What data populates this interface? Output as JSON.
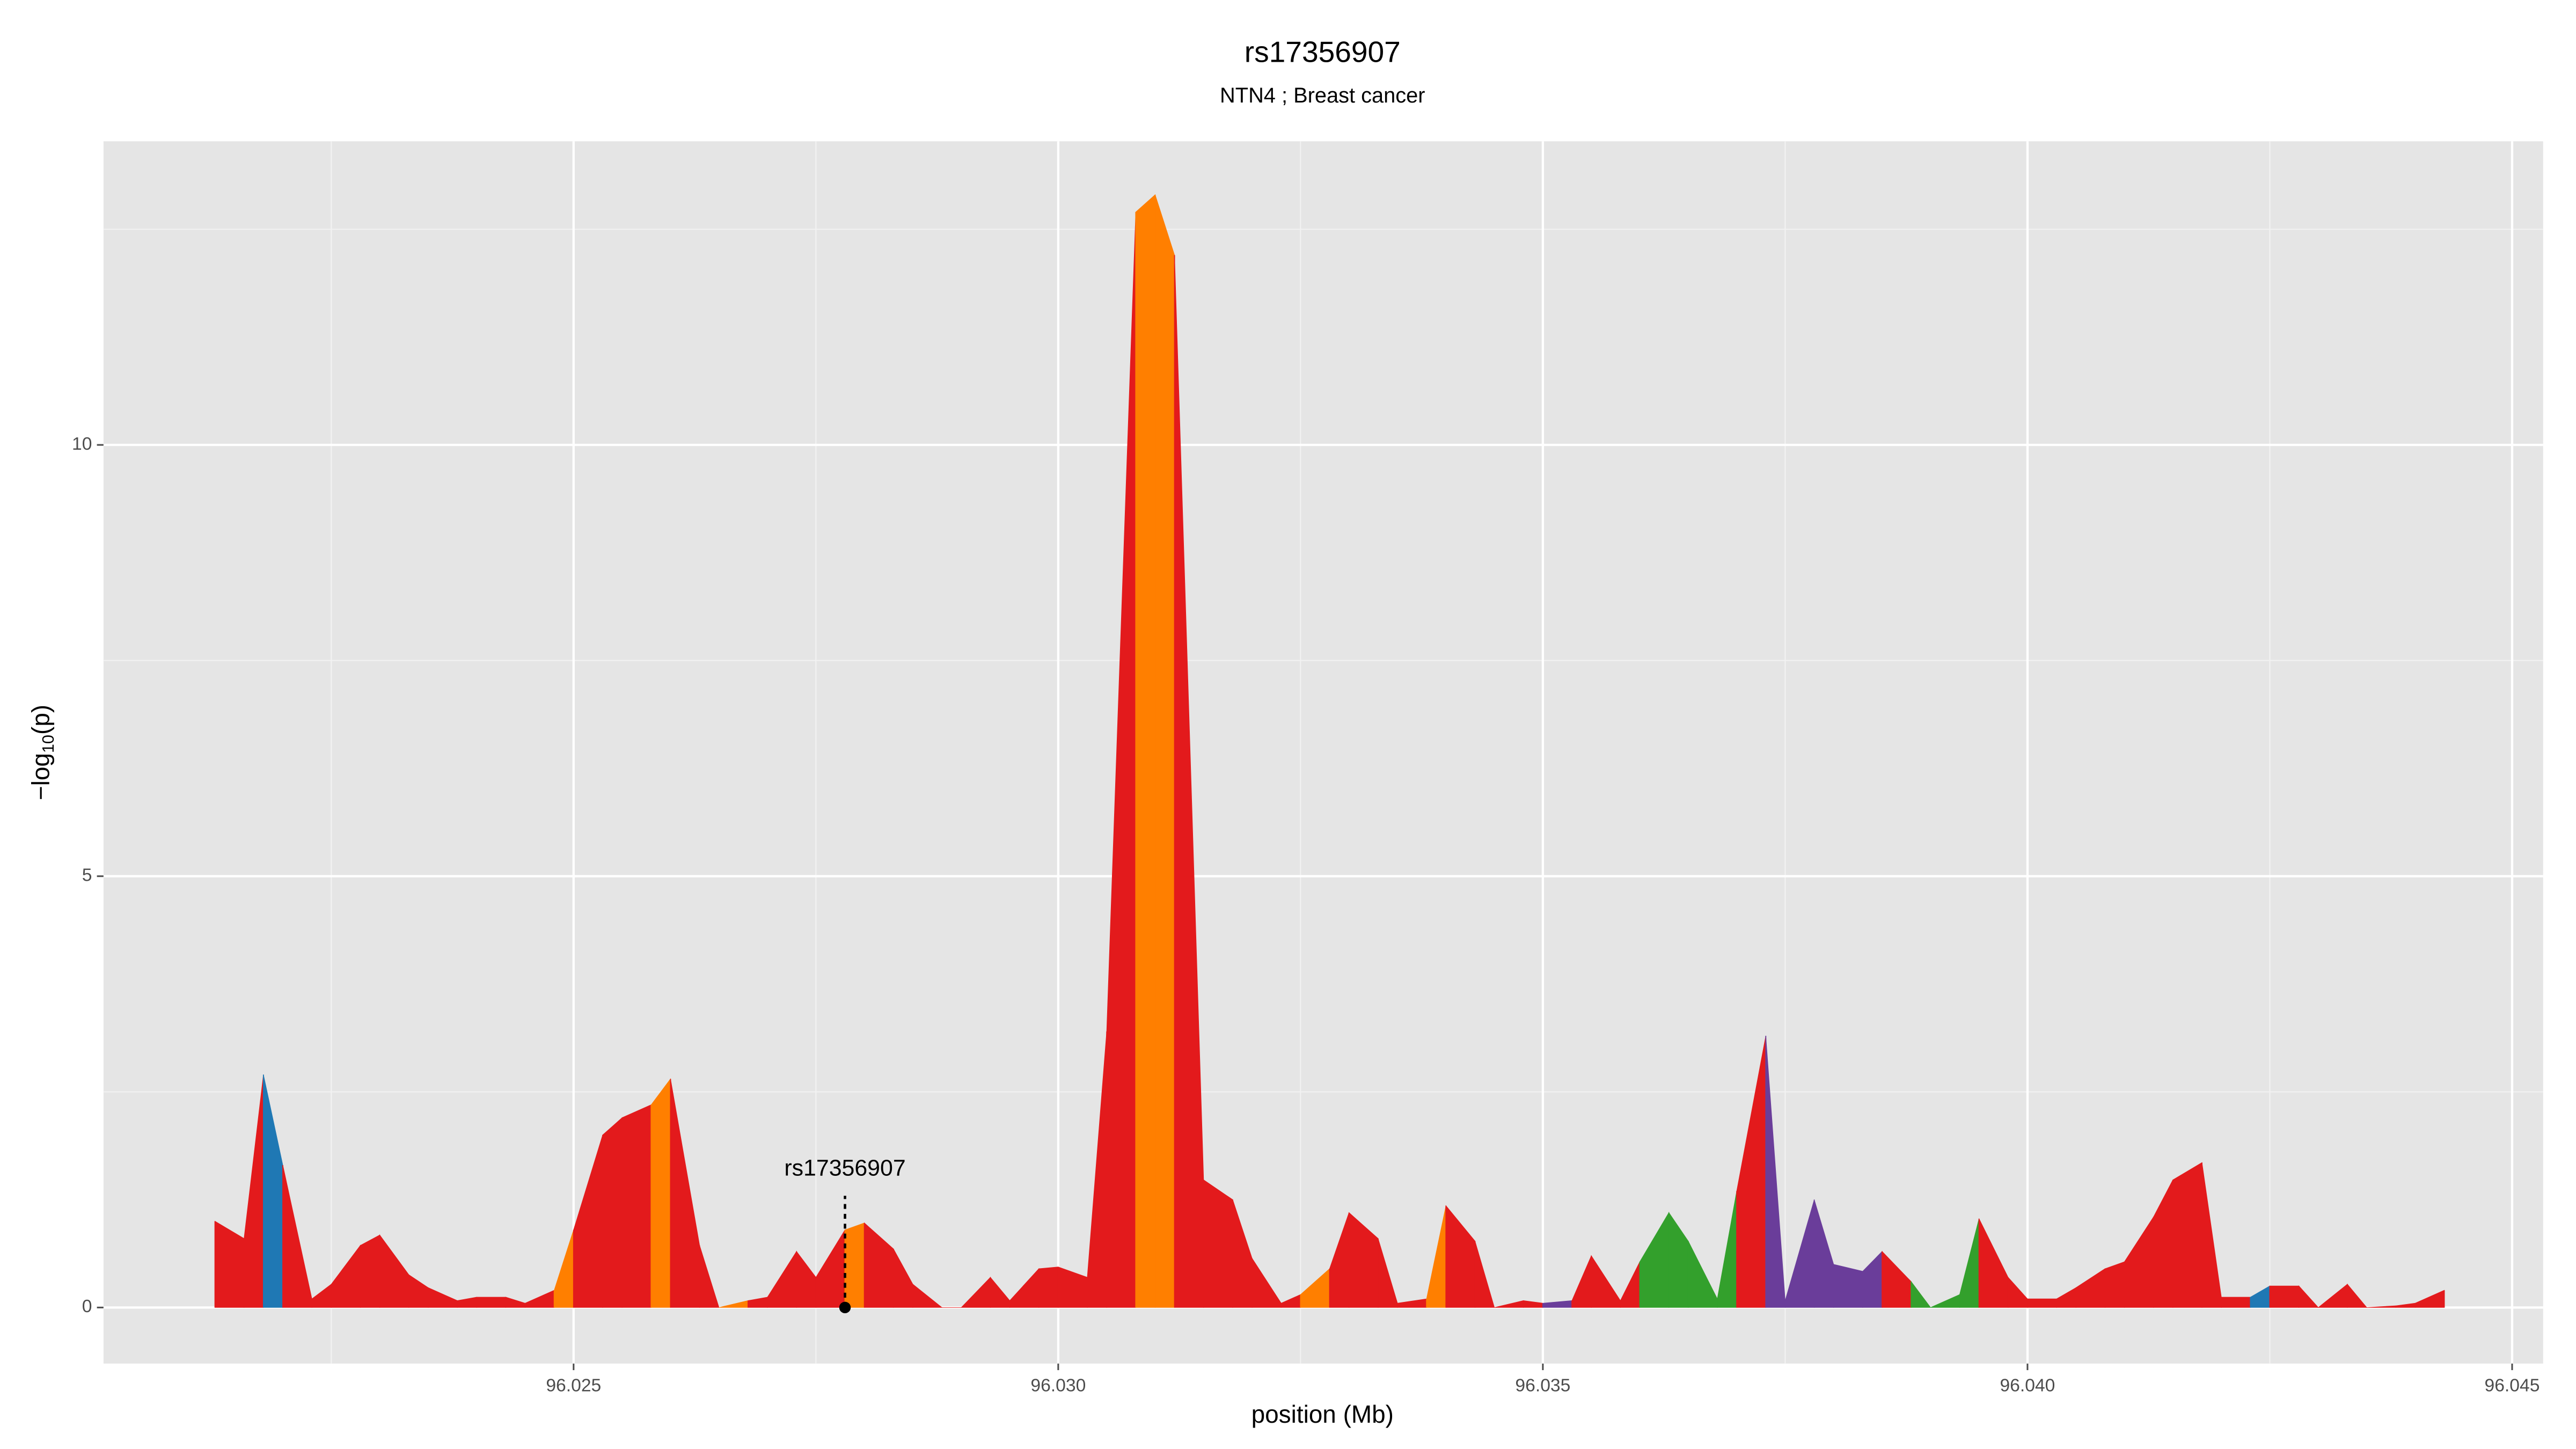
{
  "chart_data": {
    "type": "area",
    "title": "rs17356907",
    "subtitle": "NTN4 ; Breast cancer",
    "x_label": "position (Mb)",
    "y_label": {
      "prefix": "−log",
      "sub": "10",
      "suffix": "(p)"
    },
    "xlim": [
      96.02015,
      96.04532
    ],
    "ylim": [
      -0.65,
      13.52
    ],
    "xticks": [
      96.025,
      {
        "value": 96.03,
        "label": "96.030"
      },
      96.035,
      {
        "value": 96.04,
        "label": "96.040"
      },
      96.045
    ],
    "yticks": [
      0,
      5,
      10
    ],
    "minor_xticks": [
      96.0225,
      96.0275,
      96.0325,
      96.0375,
      96.0425
    ],
    "minor_yticks": [
      2.5,
      7.5,
      12.5
    ],
    "grid": true,
    "x": [
      96.0213,
      96.0216,
      96.0218,
      96.022,
      96.0223,
      96.0225,
      96.0228,
      96.023,
      96.0233,
      96.0235,
      96.0238,
      96.024,
      96.0243,
      96.0245,
      96.0248,
      96.025,
      96.0253,
      96.0255,
      96.0258,
      96.026,
      96.0263,
      96.0265,
      96.0268,
      96.027,
      96.0273,
      96.0275,
      96.0278,
      96.028,
      96.0283,
      96.0285,
      96.0288,
      96.029,
      96.0293,
      96.0295,
      96.0298,
      96.03,
      96.0303,
      96.0305,
      96.0308,
      96.031,
      96.0312,
      96.0315,
      96.0318,
      96.032,
      96.0323,
      96.0325,
      96.0328,
      96.033,
      96.0333,
      96.0335,
      96.0338,
      96.034,
      96.0343,
      96.0345,
      96.0348,
      96.035,
      96.0353,
      96.0355,
      96.0358,
      96.036,
      96.0363,
      96.0365,
      96.0368,
      96.037,
      96.0373,
      96.0375,
      96.0378,
      96.038,
      96.0383,
      96.0385,
      96.0388,
      96.039,
      96.0393,
      96.0395,
      96.0398,
      96.04,
      96.0403,
      96.0405,
      96.0408,
      96.041,
      96.0413,
      96.0415,
      96.0418,
      96.042,
      96.0423,
      96.0425,
      96.0428,
      96.043,
      96.0433,
      96.0435,
      96.0438,
      96.044,
      96.0443
    ],
    "values": [
      1.0,
      0.8,
      2.7,
      1.65,
      0.1,
      0.27,
      0.72,
      0.84,
      0.38,
      0.23,
      0.08,
      0.12,
      0.12,
      0.05,
      0.2,
      0.9,
      2.0,
      2.2,
      2.35,
      2.65,
      0.72,
      0.0,
      0.08,
      0.12,
      0.65,
      0.35,
      0.9,
      0.98,
      0.68,
      0.27,
      0.0,
      0.0,
      0.35,
      0.08,
      0.45,
      0.47,
      0.35,
      3.2,
      12.7,
      12.9,
      12.2,
      1.48,
      1.25,
      0.57,
      0.05,
      0.15,
      0.45,
      1.1,
      0.8,
      0.05,
      0.1,
      1.18,
      0.77,
      0.0,
      0.08,
      0.05,
      0.08,
      0.6,
      0.08,
      0.53,
      1.1,
      0.77,
      0.1,
      1.35,
      3.15,
      0.08,
      1.25,
      0.5,
      0.42,
      0.65,
      0.3,
      0.0,
      0.15,
      1.03,
      0.35,
      0.1,
      0.1,
      0.23,
      0.45,
      0.53,
      1.05,
      1.48,
      1.68,
      0.12,
      0.12,
      0.25,
      0.25,
      0.0,
      0.27,
      0.0,
      0.02,
      0.05,
      0.2
    ],
    "colors": [
      "#e31a1c",
      "#e31a1c",
      "#1f78b4",
      "#e31a1c",
      "#e31a1c",
      "#e31a1c",
      "#e31a1c",
      "#e31a1c",
      "#e31a1c",
      "#e31a1c",
      "#e31a1c",
      "#e31a1c",
      "#e31a1c",
      "#e31a1c",
      "#ff7f00",
      "#e31a1c",
      "#e31a1c",
      "#e31a1c",
      "#ff7f00",
      "#e31a1c",
      "#e31a1c",
      "#ff7f00",
      "#e31a1c",
      "#e31a1c",
      "#e31a1c",
      "#e31a1c",
      "#ff7f00",
      "#e31a1c",
      "#e31a1c",
      "#e31a1c",
      "#e31a1c",
      "#e31a1c",
      "#e31a1c",
      "#e31a1c",
      "#e31a1c",
      "#e31a1c",
      "#e31a1c",
      "#e31a1c",
      "#ff7f00",
      "#ff7f00",
      "#e31a1c",
      "#e31a1c",
      "#e31a1c",
      "#e31a1c",
      "#e31a1c",
      "#ff7f00",
      "#e31a1c",
      "#e31a1c",
      "#e31a1c",
      "#e31a1c",
      "#ff7f00",
      "#e31a1c",
      "#e31a1c",
      "#e31a1c",
      "#e31a1c",
      "#6a3d9a",
      "#e31a1c",
      "#e31a1c",
      "#e31a1c",
      "#33a02c",
      "#33a02c",
      "#33a02c",
      "#33a02c",
      "#e31a1c",
      "#6a3d9a",
      "#6a3d9a",
      "#6a3d9a",
      "#6a3d9a",
      "#6a3d9a",
      "#e31a1c",
      "#33a02c",
      "#33a02c",
      "#33a02c",
      "#e31a1c",
      "#e31a1c",
      "#e31a1c",
      "#e31a1c",
      "#e31a1c",
      "#e31a1c",
      "#e31a1c",
      "#e31a1c",
      "#e31a1c",
      "#e31a1c",
      "#e31a1c",
      "#1f78b4",
      "#e31a1c",
      "#e31a1c",
      "#e31a1c",
      "#e31a1c",
      "#e31a1c",
      "#e31a1c",
      "#e31a1c",
      "#e31a1c"
    ],
    "annotation": {
      "text": "rs17356907",
      "x": 96.0278
    }
  }
}
